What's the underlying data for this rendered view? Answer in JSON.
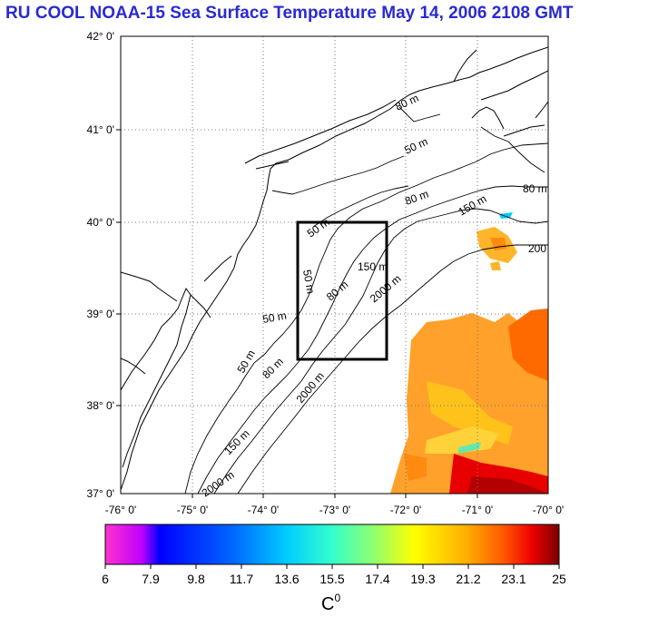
{
  "title": "RU COOL  NOAA-15 Sea Surface Temperature May 14, 2006 2108 GMT",
  "map": {
    "lat_labels": [
      "42° 0'",
      "41° 0'",
      "40° 0'",
      "39° 0'",
      "38° 0'",
      "37° 0'"
    ],
    "lon_labels": [
      "-76° 0'",
      "-75° 0'",
      "-74° 0'",
      "-73° 0'",
      "-72° 0'",
      "-71° 0'",
      "-70° 0'"
    ],
    "lat_range": [
      37,
      42
    ],
    "lon_range": [
      -76,
      -70
    ],
    "grid": "dotted",
    "contour_labels": [
      "50 m",
      "50 m",
      "50 m",
      "50 m",
      "80 m",
      "80 m",
      "80 m",
      "150 m",
      "150 m",
      "150 m",
      "2000 m",
      "2000 m",
      "2000 m",
      "80 m",
      "50 m",
      "80 m",
      "200"
    ],
    "study_box": {
      "lon": [
        -73.5,
        -72.3
      ],
      "lat": [
        38.5,
        40.0
      ]
    }
  },
  "colorbar": {
    "ticks": [
      "6",
      "7.9",
      "9.8",
      "11.7",
      "13.6",
      "15.5",
      "17.4",
      "19.3",
      "21.2",
      "23.1",
      "25"
    ],
    "range": [
      6,
      25
    ],
    "unit": "C",
    "unit_sup": "0",
    "colors": [
      "#ff33cc",
      "#c000ff",
      "#0000ff",
      "#0066ff",
      "#00ccff",
      "#33ffcc",
      "#99ff66",
      "#ffff00",
      "#ffaa00",
      "#ff5500",
      "#ee0000",
      "#7a0000"
    ]
  }
}
